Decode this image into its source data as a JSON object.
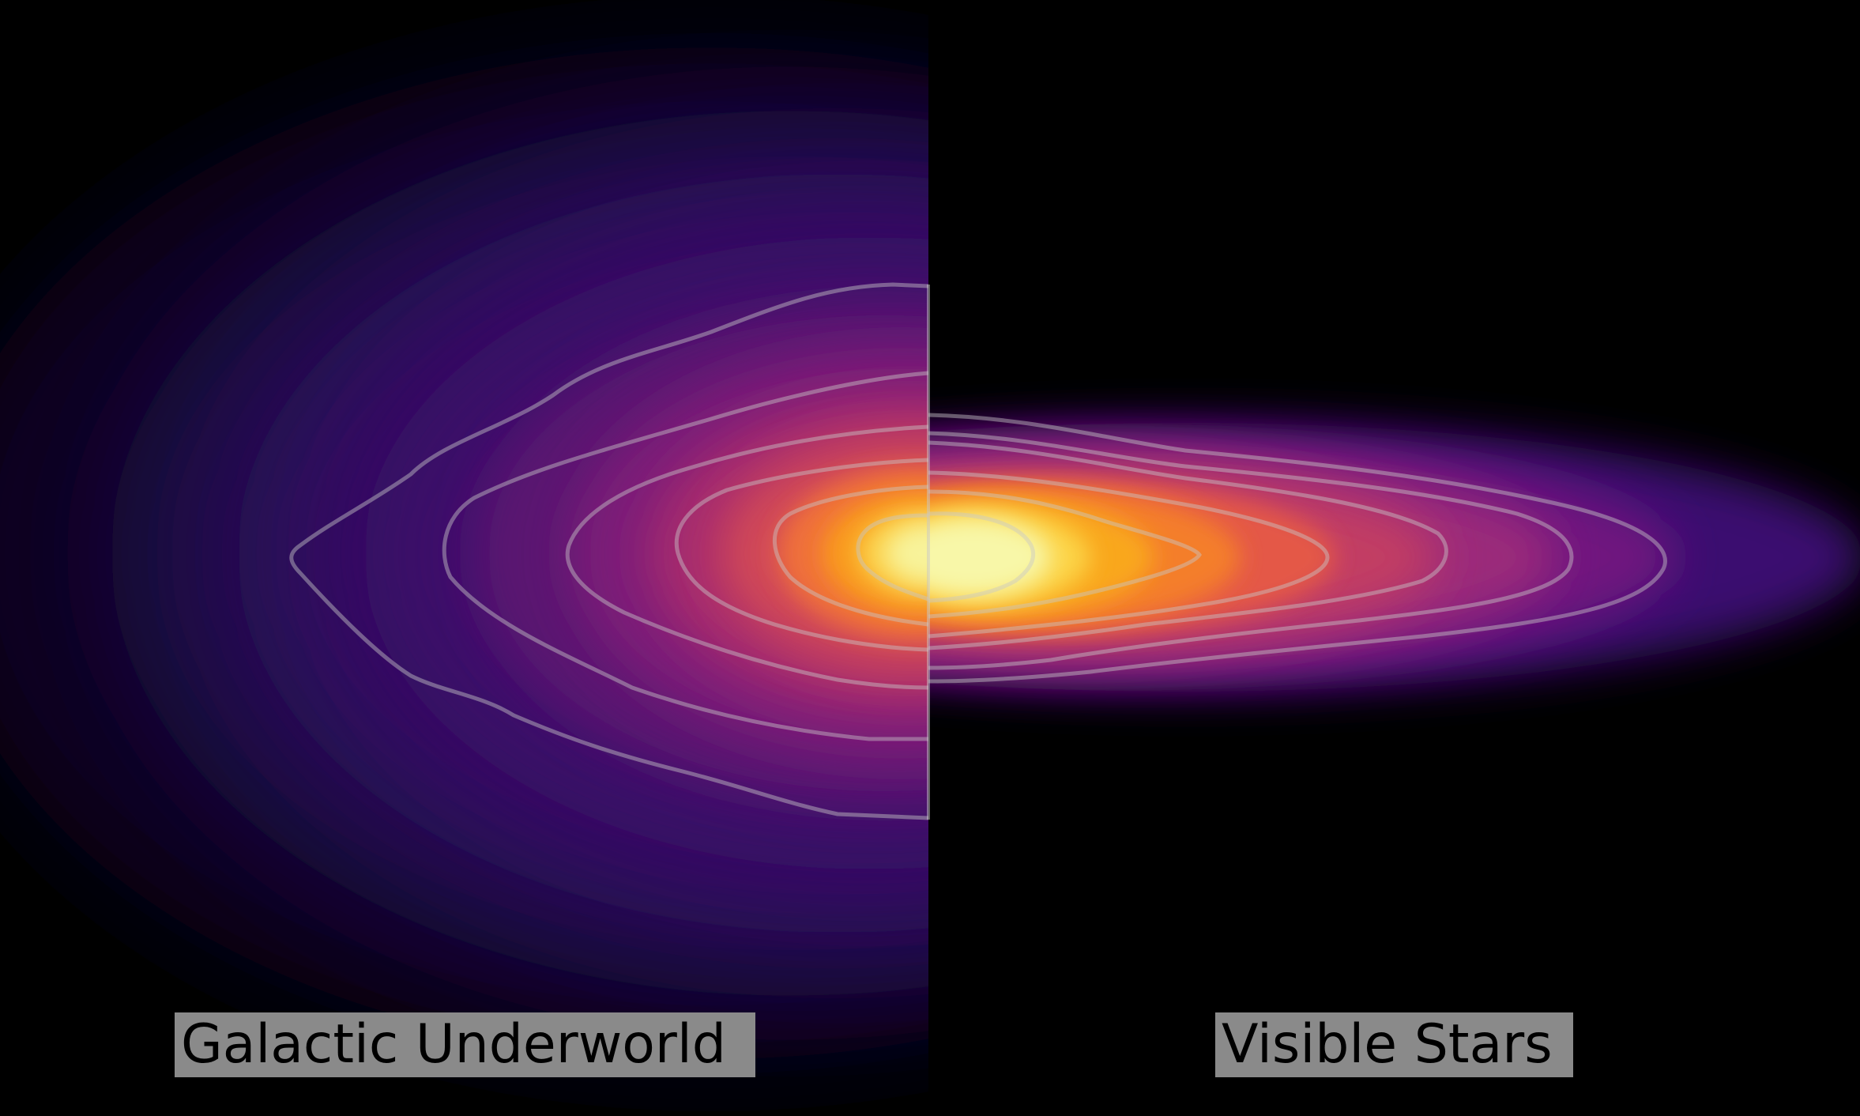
{
  "panels": {
    "left": {
      "label": "Galactic Underworld"
    },
    "right": {
      "label": "Visible Stars"
    }
  },
  "colors": {
    "background": "#000000",
    "label_background": "#8a8a8a",
    "colormap": [
      "#000004",
      "#3b0f70",
      "#8c2981",
      "#de4968",
      "#fe9f6d",
      "#fcfdbf"
    ],
    "contour_stroke": "#c8c8c8"
  }
}
